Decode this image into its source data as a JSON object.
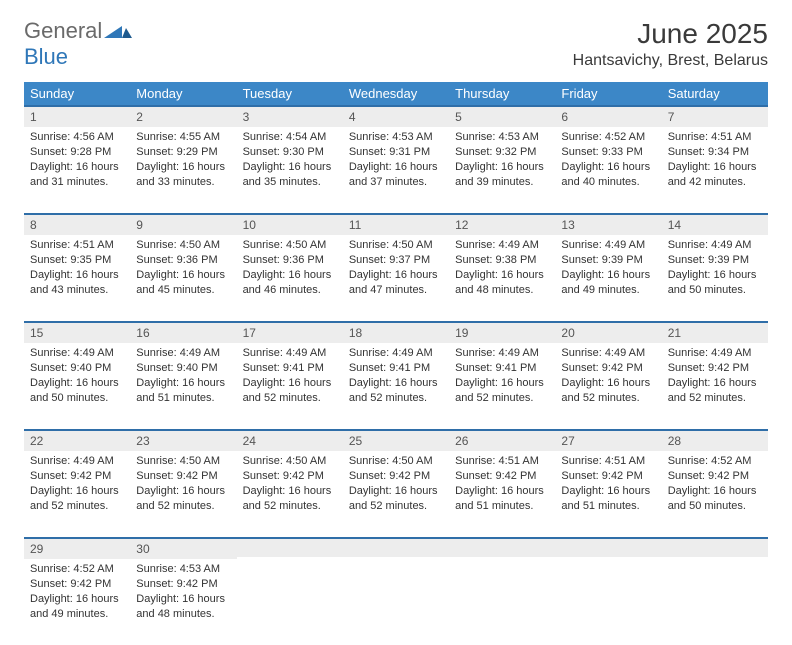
{
  "brand": {
    "part1": "General",
    "part2": "Blue"
  },
  "title": "June 2025",
  "location": "Hantsavichy, Brest, Belarus",
  "colors": {
    "header_bg": "#3c87c7",
    "header_text": "#ffffff",
    "row_divider": "#2f6ea8",
    "daynum_bg": "#ededed",
    "brand_gray": "#6a6a6a",
    "brand_blue": "#2f77b8"
  },
  "columns": [
    "Sunday",
    "Monday",
    "Tuesday",
    "Wednesday",
    "Thursday",
    "Friday",
    "Saturday"
  ],
  "weeks": [
    [
      {
        "n": "1",
        "sr": "Sunrise: 4:56 AM",
        "ss": "Sunset: 9:28 PM",
        "d1": "Daylight: 16 hours",
        "d2": "and 31 minutes."
      },
      {
        "n": "2",
        "sr": "Sunrise: 4:55 AM",
        "ss": "Sunset: 9:29 PM",
        "d1": "Daylight: 16 hours",
        "d2": "and 33 minutes."
      },
      {
        "n": "3",
        "sr": "Sunrise: 4:54 AM",
        "ss": "Sunset: 9:30 PM",
        "d1": "Daylight: 16 hours",
        "d2": "and 35 minutes."
      },
      {
        "n": "4",
        "sr": "Sunrise: 4:53 AM",
        "ss": "Sunset: 9:31 PM",
        "d1": "Daylight: 16 hours",
        "d2": "and 37 minutes."
      },
      {
        "n": "5",
        "sr": "Sunrise: 4:53 AM",
        "ss": "Sunset: 9:32 PM",
        "d1": "Daylight: 16 hours",
        "d2": "and 39 minutes."
      },
      {
        "n": "6",
        "sr": "Sunrise: 4:52 AM",
        "ss": "Sunset: 9:33 PM",
        "d1": "Daylight: 16 hours",
        "d2": "and 40 minutes."
      },
      {
        "n": "7",
        "sr": "Sunrise: 4:51 AM",
        "ss": "Sunset: 9:34 PM",
        "d1": "Daylight: 16 hours",
        "d2": "and 42 minutes."
      }
    ],
    [
      {
        "n": "8",
        "sr": "Sunrise: 4:51 AM",
        "ss": "Sunset: 9:35 PM",
        "d1": "Daylight: 16 hours",
        "d2": "and 43 minutes."
      },
      {
        "n": "9",
        "sr": "Sunrise: 4:50 AM",
        "ss": "Sunset: 9:36 PM",
        "d1": "Daylight: 16 hours",
        "d2": "and 45 minutes."
      },
      {
        "n": "10",
        "sr": "Sunrise: 4:50 AM",
        "ss": "Sunset: 9:36 PM",
        "d1": "Daylight: 16 hours",
        "d2": "and 46 minutes."
      },
      {
        "n": "11",
        "sr": "Sunrise: 4:50 AM",
        "ss": "Sunset: 9:37 PM",
        "d1": "Daylight: 16 hours",
        "d2": "and 47 minutes."
      },
      {
        "n": "12",
        "sr": "Sunrise: 4:49 AM",
        "ss": "Sunset: 9:38 PM",
        "d1": "Daylight: 16 hours",
        "d2": "and 48 minutes."
      },
      {
        "n": "13",
        "sr": "Sunrise: 4:49 AM",
        "ss": "Sunset: 9:39 PM",
        "d1": "Daylight: 16 hours",
        "d2": "and 49 minutes."
      },
      {
        "n": "14",
        "sr": "Sunrise: 4:49 AM",
        "ss": "Sunset: 9:39 PM",
        "d1": "Daylight: 16 hours",
        "d2": "and 50 minutes."
      }
    ],
    [
      {
        "n": "15",
        "sr": "Sunrise: 4:49 AM",
        "ss": "Sunset: 9:40 PM",
        "d1": "Daylight: 16 hours",
        "d2": "and 50 minutes."
      },
      {
        "n": "16",
        "sr": "Sunrise: 4:49 AM",
        "ss": "Sunset: 9:40 PM",
        "d1": "Daylight: 16 hours",
        "d2": "and 51 minutes."
      },
      {
        "n": "17",
        "sr": "Sunrise: 4:49 AM",
        "ss": "Sunset: 9:41 PM",
        "d1": "Daylight: 16 hours",
        "d2": "and 52 minutes."
      },
      {
        "n": "18",
        "sr": "Sunrise: 4:49 AM",
        "ss": "Sunset: 9:41 PM",
        "d1": "Daylight: 16 hours",
        "d2": "and 52 minutes."
      },
      {
        "n": "19",
        "sr": "Sunrise: 4:49 AM",
        "ss": "Sunset: 9:41 PM",
        "d1": "Daylight: 16 hours",
        "d2": "and 52 minutes."
      },
      {
        "n": "20",
        "sr": "Sunrise: 4:49 AM",
        "ss": "Sunset: 9:42 PM",
        "d1": "Daylight: 16 hours",
        "d2": "and 52 minutes."
      },
      {
        "n": "21",
        "sr": "Sunrise: 4:49 AM",
        "ss": "Sunset: 9:42 PM",
        "d1": "Daylight: 16 hours",
        "d2": "and 52 minutes."
      }
    ],
    [
      {
        "n": "22",
        "sr": "Sunrise: 4:49 AM",
        "ss": "Sunset: 9:42 PM",
        "d1": "Daylight: 16 hours",
        "d2": "and 52 minutes."
      },
      {
        "n": "23",
        "sr": "Sunrise: 4:50 AM",
        "ss": "Sunset: 9:42 PM",
        "d1": "Daylight: 16 hours",
        "d2": "and 52 minutes."
      },
      {
        "n": "24",
        "sr": "Sunrise: 4:50 AM",
        "ss": "Sunset: 9:42 PM",
        "d1": "Daylight: 16 hours",
        "d2": "and 52 minutes."
      },
      {
        "n": "25",
        "sr": "Sunrise: 4:50 AM",
        "ss": "Sunset: 9:42 PM",
        "d1": "Daylight: 16 hours",
        "d2": "and 52 minutes."
      },
      {
        "n": "26",
        "sr": "Sunrise: 4:51 AM",
        "ss": "Sunset: 9:42 PM",
        "d1": "Daylight: 16 hours",
        "d2": "and 51 minutes."
      },
      {
        "n": "27",
        "sr": "Sunrise: 4:51 AM",
        "ss": "Sunset: 9:42 PM",
        "d1": "Daylight: 16 hours",
        "d2": "and 51 minutes."
      },
      {
        "n": "28",
        "sr": "Sunrise: 4:52 AM",
        "ss": "Sunset: 9:42 PM",
        "d1": "Daylight: 16 hours",
        "d2": "and 50 minutes."
      }
    ],
    [
      {
        "n": "29",
        "sr": "Sunrise: 4:52 AM",
        "ss": "Sunset: 9:42 PM",
        "d1": "Daylight: 16 hours",
        "d2": "and 49 minutes."
      },
      {
        "n": "30",
        "sr": "Sunrise: 4:53 AM",
        "ss": "Sunset: 9:42 PM",
        "d1": "Daylight: 16 hours",
        "d2": "and 48 minutes."
      },
      null,
      null,
      null,
      null,
      null
    ]
  ]
}
